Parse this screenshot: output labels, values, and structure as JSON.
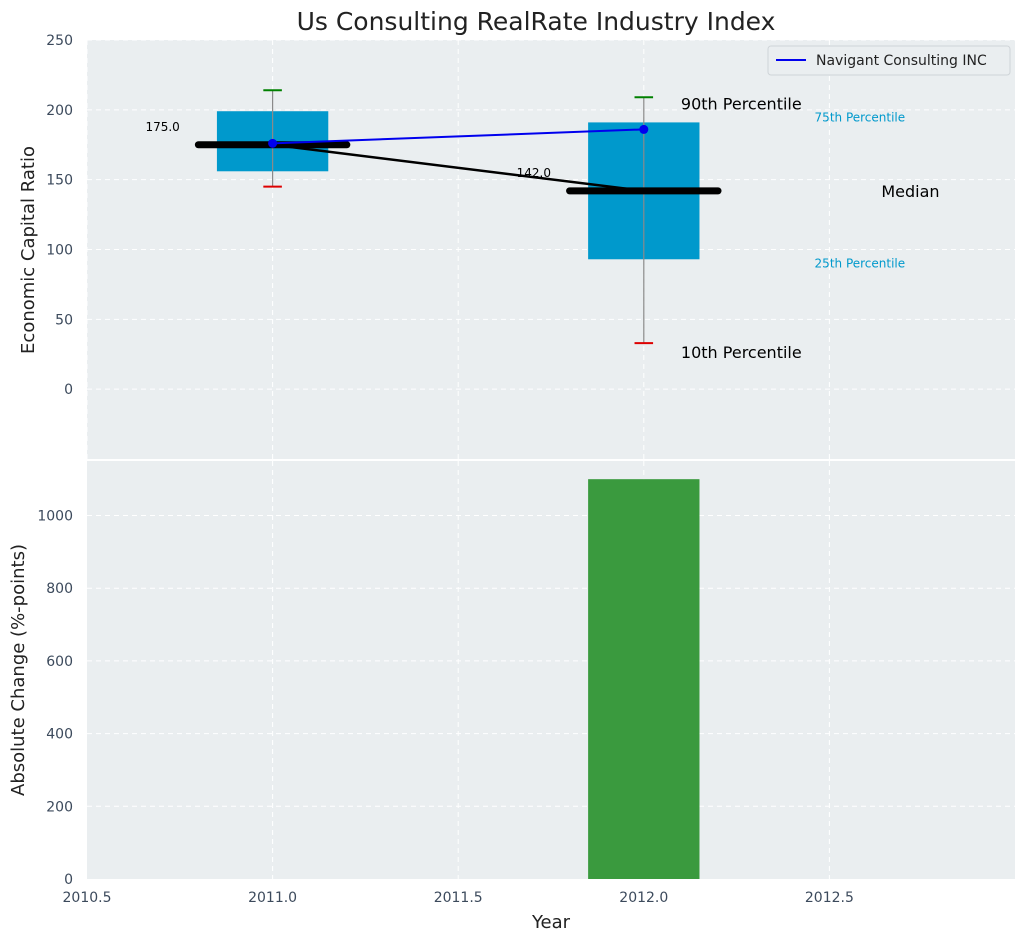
{
  "chart_data": [
    {
      "type": "box",
      "title": "Us Consulting RealRate Industry Index",
      "ylabel": "Economic Capital Ratio",
      "xlim": [
        2010.5,
        2013.0
      ],
      "ylim": [
        -50,
        250
      ],
      "yticks": [
        0,
        50,
        100,
        150,
        200,
        250
      ],
      "grid": true,
      "legend_position": "top-right",
      "boxes": [
        {
          "x": 2011.0,
          "p10": 145,
          "p25": 156,
          "median": 175,
          "p75": 199,
          "p90": 214,
          "median_label": "175.0"
        },
        {
          "x": 2012.0,
          "p10": 33,
          "p25": 93,
          "median": 142,
          "p75": 191,
          "p90": 209,
          "median_label": "142.0"
        }
      ],
      "median_line": {
        "x": [
          2011.0,
          2012.0
        ],
        "y": [
          175,
          142
        ]
      },
      "series": [
        {
          "name": "Navigant Consulting INC",
          "x": [
            2011.0,
            2012.0
          ],
          "y": [
            176,
            186
          ],
          "color": "#0000ee"
        }
      ],
      "annotations": {
        "p90": "90th Percentile",
        "p75": "75th Percentile",
        "median": "Median",
        "p25": "25th Percentile",
        "p10": "10th Percentile"
      },
      "colors": {
        "box": "#0099cc",
        "p90_cap": "#008000",
        "p10_cap": "#dd0000",
        "median": "#000000",
        "background": "#eaeef0"
      }
    },
    {
      "type": "bar",
      "ylabel": "Absolute Change (%-points)",
      "xlabel": "Year",
      "xlim": [
        2010.5,
        2013.0
      ],
      "ylim": [
        0,
        1150
      ],
      "xticks": [
        "2010.5",
        "2011.0",
        "2011.5",
        "2012.0",
        "2012.5"
      ],
      "yticks": [
        0,
        200,
        400,
        600,
        800,
        1000
      ],
      "grid": true,
      "bars": [
        {
          "x": 2012.0,
          "value": 1100,
          "color": "#3a9a3e"
        }
      ]
    }
  ]
}
